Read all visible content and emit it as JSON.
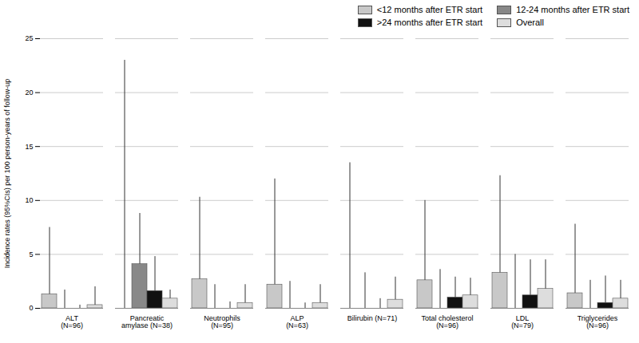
{
  "chart_data": {
    "type": "bar",
    "categories": [
      "ALT\n(N=96)",
      "Pancreatic\namylase (N=38)",
      "Neutrophils\n(N=95)",
      "ALP\n(N=63)",
      "Bilirubin (N=71)",
      "Total cholesterol\n(N=96)",
      "LDL\n(N=79)",
      "Triglycerides\n(N=96)"
    ],
    "series": [
      {
        "name": "<12 months after ETR start",
        "color": "#c8c8c8",
        "values": [
          1.3,
          0.0,
          2.7,
          2.2,
          0.0,
          2.6,
          3.3,
          1.4
        ],
        "ci_upper": [
          7.5,
          23.0,
          10.3,
          12.0,
          13.5,
          10.0,
          12.3,
          7.8
        ]
      },
      {
        "name": "12-24 months after ETR start",
        "color": "#888888",
        "values": [
          0.0,
          4.1,
          0.0,
          0.0,
          0.0,
          0.0,
          0.0,
          0.0
        ],
        "ci_upper": [
          1.7,
          8.8,
          2.2,
          2.5,
          3.3,
          3.6,
          5.0,
          2.6
        ]
      },
      {
        "name": ">24 months after ETR start",
        "color": "#111111",
        "values": [
          0.0,
          1.6,
          0.0,
          0.0,
          0.0,
          1.0,
          1.2,
          0.5
        ],
        "ci_upper": [
          0.3,
          4.8,
          0.6,
          0.5,
          0.9,
          2.9,
          4.5,
          3.0
        ]
      },
      {
        "name": "Overall",
        "color": "#dddddd",
        "values": [
          0.3,
          0.9,
          0.5,
          0.5,
          0.8,
          1.2,
          1.8,
          0.9
        ],
        "ci_upper": [
          2.0,
          1.7,
          2.2,
          2.2,
          2.9,
          2.8,
          4.5,
          2.6
        ]
      }
    ],
    "ylabel": "Incidence rates (95%CIs) per 100 person-years of follow-up",
    "ylim": [
      0,
      25
    ],
    "yticks": [
      0,
      5,
      10,
      15,
      20,
      25
    ],
    "grid": true,
    "legend": "upper right"
  }
}
